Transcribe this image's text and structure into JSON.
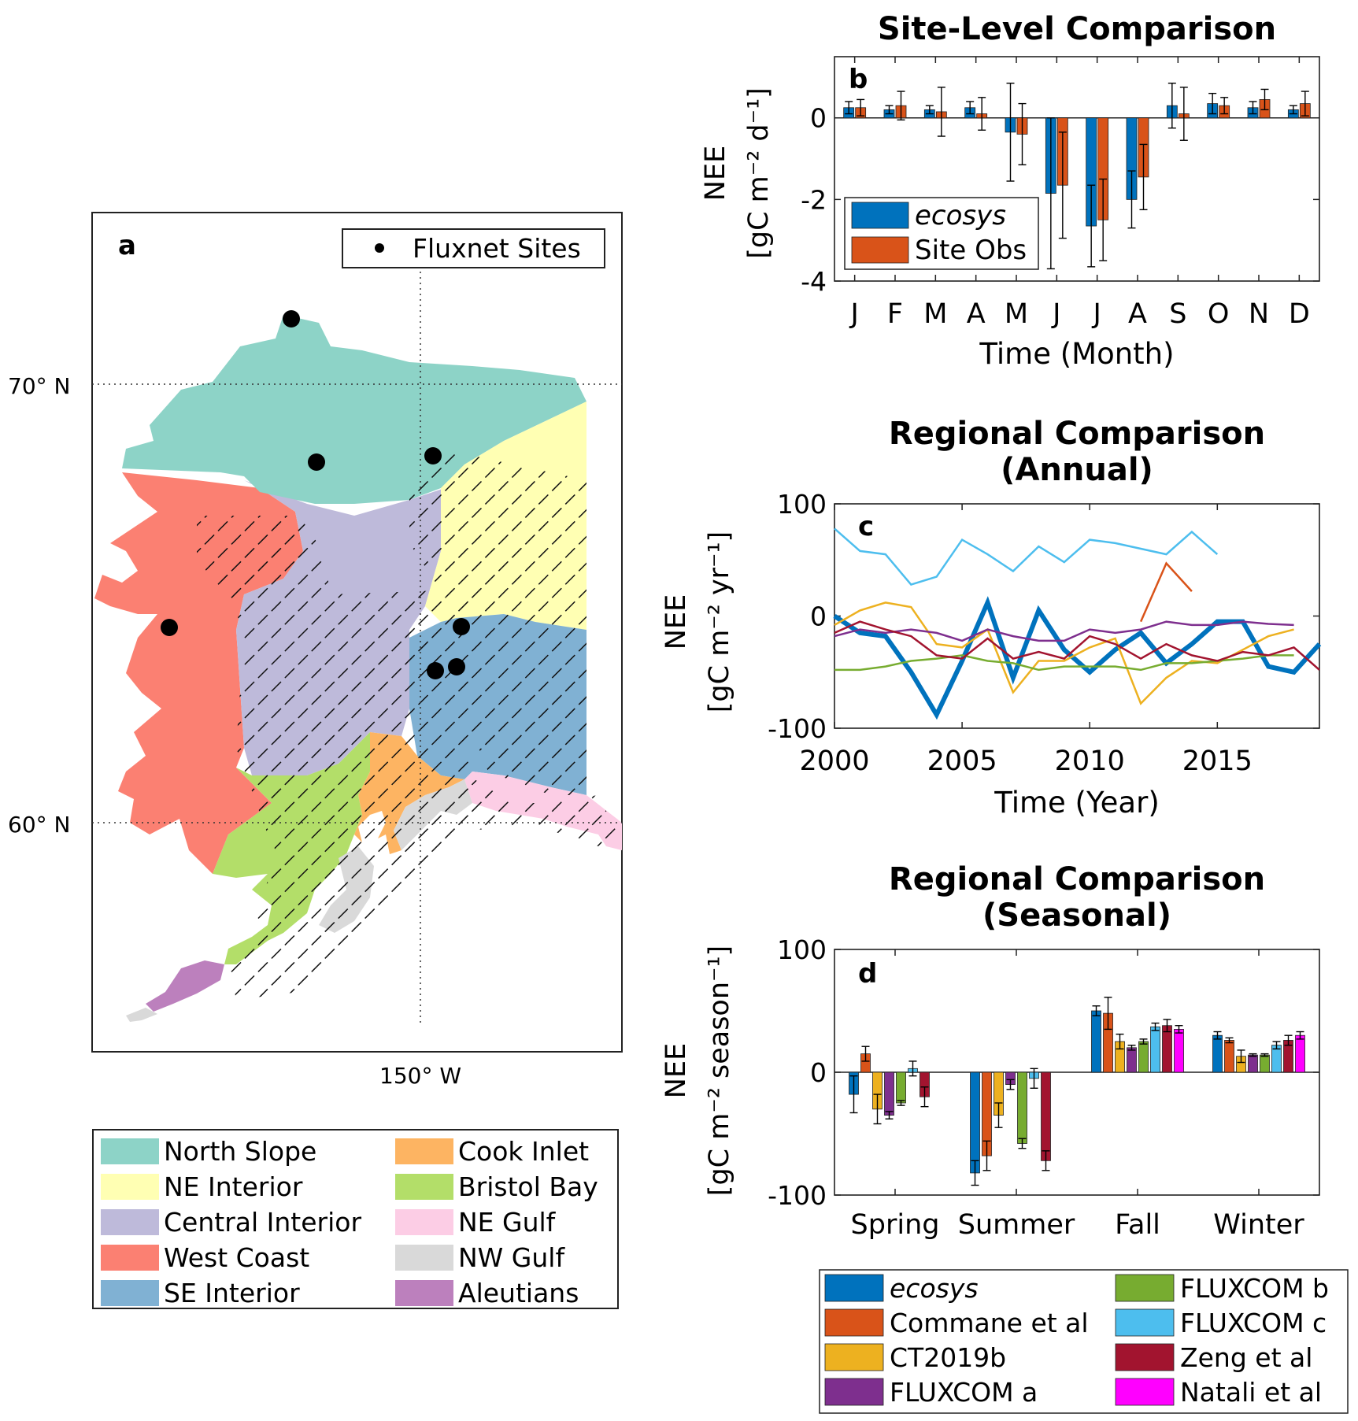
{
  "map": {
    "panel_label": "a",
    "legend_label": "Fluxnet Sites",
    "lat_labels": [
      "70° N",
      "60° N"
    ],
    "lon_label": "150° W",
    "regions": [
      {
        "name": "North Slope",
        "color": "#8dd3c7"
      },
      {
        "name": "NE Interior",
        "color": "#ffffb3"
      },
      {
        "name": "Central Interior",
        "color": "#bebada"
      },
      {
        "name": "West Coast",
        "color": "#fb8072"
      },
      {
        "name": "SE Interior",
        "color": "#80b1d3"
      },
      {
        "name": "Cook Inlet",
        "color": "#fdb462"
      },
      {
        "name": "Bristol Bay",
        "color": "#b3de69"
      },
      {
        "name": "NE Gulf",
        "color": "#fccde5"
      },
      {
        "name": "NW Gulf",
        "color": "#d9d9d9"
      },
      {
        "name": "Aleutians",
        "color": "#bc80bd"
      }
    ]
  },
  "chart_data": [
    {
      "type": "bar",
      "id": "b",
      "panel_label": "b",
      "title": "Site-Level Comparison",
      "xlabel": "Time (Month)",
      "ylabel": [
        "NEE",
        "[gC m⁻² d⁻¹]"
      ],
      "ylim": [
        -4,
        1.5
      ],
      "yticks": [
        0,
        -2,
        -4
      ],
      "categories": [
        "J",
        "F",
        "M",
        "A",
        "M",
        "J",
        "J",
        "A",
        "S",
        "O",
        "N",
        "D"
      ],
      "series": [
        {
          "name": "ecosys",
          "color": "#0072bd",
          "values": [
            0.25,
            0.2,
            0.2,
            0.25,
            -0.35,
            -1.85,
            -2.65,
            -2.0,
            0.3,
            0.35,
            0.25,
            0.2
          ],
          "errors": [
            0.15,
            0.1,
            0.1,
            0.15,
            1.2,
            1.85,
            1.0,
            0.7,
            0.55,
            0.25,
            0.15,
            0.1
          ]
        },
        {
          "name": "Site Obs",
          "color": "#d95319",
          "values": [
            0.25,
            0.3,
            0.15,
            0.1,
            -0.4,
            -1.65,
            -2.5,
            -1.45,
            0.1,
            0.3,
            0.45,
            0.35
          ],
          "errors": [
            0.2,
            0.35,
            0.6,
            0.4,
            0.75,
            1.3,
            1.0,
            0.8,
            0.65,
            0.2,
            0.25,
            0.3
          ]
        }
      ],
      "legend": [
        "ecosys",
        "Site Obs"
      ]
    },
    {
      "type": "line",
      "id": "c",
      "panel_label": "c",
      "title": [
        "Regional Comparison",
        "(Annual)"
      ],
      "xlabel": "Time (Year)",
      "ylabel": [
        "NEE",
        "[gC m⁻² yr⁻¹]"
      ],
      "xlim": [
        2000,
        2019
      ],
      "ylim": [
        -100,
        100
      ],
      "xticks": [
        2000,
        2005,
        2010,
        2015
      ],
      "yticks": [
        100,
        0,
        -100
      ],
      "series": [
        {
          "name": "ecosys",
          "color": "#0072bd",
          "width": 6,
          "x": [
            2000,
            2001,
            2002,
            2003,
            2004,
            2005,
            2006,
            2007,
            2008,
            2009,
            2010,
            2011,
            2012,
            2013,
            2014,
            2015,
            2016,
            2017,
            2018,
            2019
          ],
          "y": [
            0,
            -15,
            -18,
            -50,
            -88,
            -40,
            12,
            -55,
            5,
            -30,
            -50,
            -30,
            -15,
            -42,
            -25,
            -5,
            -5,
            -45,
            -50,
            -25
          ]
        },
        {
          "name": "Commane et al",
          "color": "#d95319",
          "width": 2.5,
          "x": [
            2012,
            2013,
            2014
          ],
          "y": [
            -5,
            47,
            22
          ]
        },
        {
          "name": "CT2019b",
          "color": "#edb120",
          "width": 2.5,
          "x": [
            2000,
            2001,
            2002,
            2003,
            2004,
            2005,
            2006,
            2007,
            2008,
            2009,
            2010,
            2011,
            2012,
            2013,
            2014,
            2015,
            2016,
            2017,
            2018
          ],
          "y": [
            -8,
            5,
            12,
            8,
            -25,
            -28,
            -12,
            -68,
            -40,
            -40,
            -28,
            -20,
            -78,
            -55,
            -40,
            -42,
            -30,
            -18,
            -12
          ]
        },
        {
          "name": "FLUXCOM a",
          "color": "#7e2f8e",
          "width": 2.5,
          "x": [
            2000,
            2001,
            2002,
            2003,
            2004,
            2005,
            2006,
            2007,
            2008,
            2009,
            2010,
            2011,
            2012,
            2013,
            2014,
            2015,
            2016,
            2017,
            2018
          ],
          "y": [
            -18,
            -12,
            -15,
            -12,
            -15,
            -22,
            -12,
            -18,
            -22,
            -22,
            -12,
            -15,
            -12,
            -5,
            -8,
            -8,
            -5,
            -7,
            -8
          ]
        },
        {
          "name": "FLUXCOM b",
          "color": "#77ac30",
          "width": 2.5,
          "x": [
            2000,
            2001,
            2002,
            2003,
            2004,
            2005,
            2006,
            2007,
            2008,
            2009,
            2010,
            2011,
            2012,
            2013,
            2014,
            2015,
            2016,
            2017,
            2018
          ],
          "y": [
            -48,
            -48,
            -45,
            -40,
            -38,
            -35,
            -40,
            -42,
            -48,
            -45,
            -45,
            -45,
            -48,
            -42,
            -42,
            -40,
            -38,
            -35,
            -35
          ]
        },
        {
          "name": "FLUXCOM c",
          "color": "#4dbeee",
          "width": 2.5,
          "x": [
            2000,
            2001,
            2002,
            2003,
            2004,
            2005,
            2006,
            2007,
            2008,
            2009,
            2010,
            2011,
            2012,
            2013,
            2014,
            2015
          ],
          "y": [
            78,
            58,
            55,
            28,
            35,
            68,
            55,
            40,
            62,
            48,
            68,
            65,
            60,
            55,
            75,
            55
          ]
        },
        {
          "name": "Zeng et al",
          "color": "#a2142f",
          "width": 2.5,
          "x": [
            2000,
            2001,
            2002,
            2003,
            2004,
            2005,
            2006,
            2007,
            2008,
            2009,
            2010,
            2011,
            2012,
            2013,
            2014,
            2015,
            2016,
            2017,
            2018,
            2019
          ],
          "y": [
            -15,
            -5,
            -12,
            -18,
            -35,
            -38,
            -20,
            -38,
            -32,
            -38,
            -18,
            -25,
            -38,
            -25,
            -35,
            -40,
            -32,
            -35,
            -28,
            -48
          ]
        }
      ]
    },
    {
      "type": "bar",
      "id": "d",
      "panel_label": "d",
      "title": [
        "Regional Comparison",
        "(Seasonal)"
      ],
      "xlabel": "",
      "ylabel": [
        "NEE",
        "[gC m⁻² season⁻¹]"
      ],
      "ylim": [
        -100,
        100
      ],
      "yticks": [
        100,
        0,
        -100
      ],
      "categories": [
        "Spring",
        "Summer",
        "Fall",
        "Winter"
      ],
      "series": [
        {
          "name": "ecosys",
          "color": "#0072bd",
          "values": [
            -18,
            -82,
            50,
            30
          ],
          "errors": [
            15,
            10,
            4,
            3
          ]
        },
        {
          "name": "Commane et al",
          "color": "#d95319",
          "values": [
            15,
            -68,
            48,
            26
          ],
          "errors": [
            6,
            12,
            13,
            2
          ]
        },
        {
          "name": "CT2019b",
          "color": "#edb120",
          "values": [
            -30,
            -35,
            25,
            13
          ],
          "errors": [
            12,
            10,
            6,
            5
          ]
        },
        {
          "name": "FLUXCOM a",
          "color": "#7e2f8e",
          "values": [
            -35,
            -10,
            20,
            14
          ],
          "errors": [
            3,
            4,
            2,
            1
          ]
        },
        {
          "name": "FLUXCOM b",
          "color": "#77ac30",
          "values": [
            -25,
            -58,
            25,
            14
          ],
          "errors": [
            2,
            4,
            2,
            1
          ]
        },
        {
          "name": "FLUXCOM c",
          "color": "#4dbeee",
          "values": [
            3,
            -5,
            37,
            22
          ],
          "errors": [
            6,
            8,
            3,
            3
          ]
        },
        {
          "name": "Zeng et al",
          "color": "#a2142f",
          "values": [
            -20,
            -72,
            38,
            26
          ],
          "errors": [
            8,
            8,
            5,
            4
          ]
        },
        {
          "name": "Natali et al",
          "color": "#ff00ff",
          "values": [
            0,
            0,
            35,
            30
          ],
          "errors": [
            0,
            0,
            3,
            3
          ]
        }
      ],
      "legend": [
        "ecosys",
        "Commane et al",
        "CT2019b",
        "FLUXCOM a",
        "FLUXCOM b",
        "FLUXCOM c",
        "Zeng et al",
        "Natali et al"
      ]
    }
  ]
}
